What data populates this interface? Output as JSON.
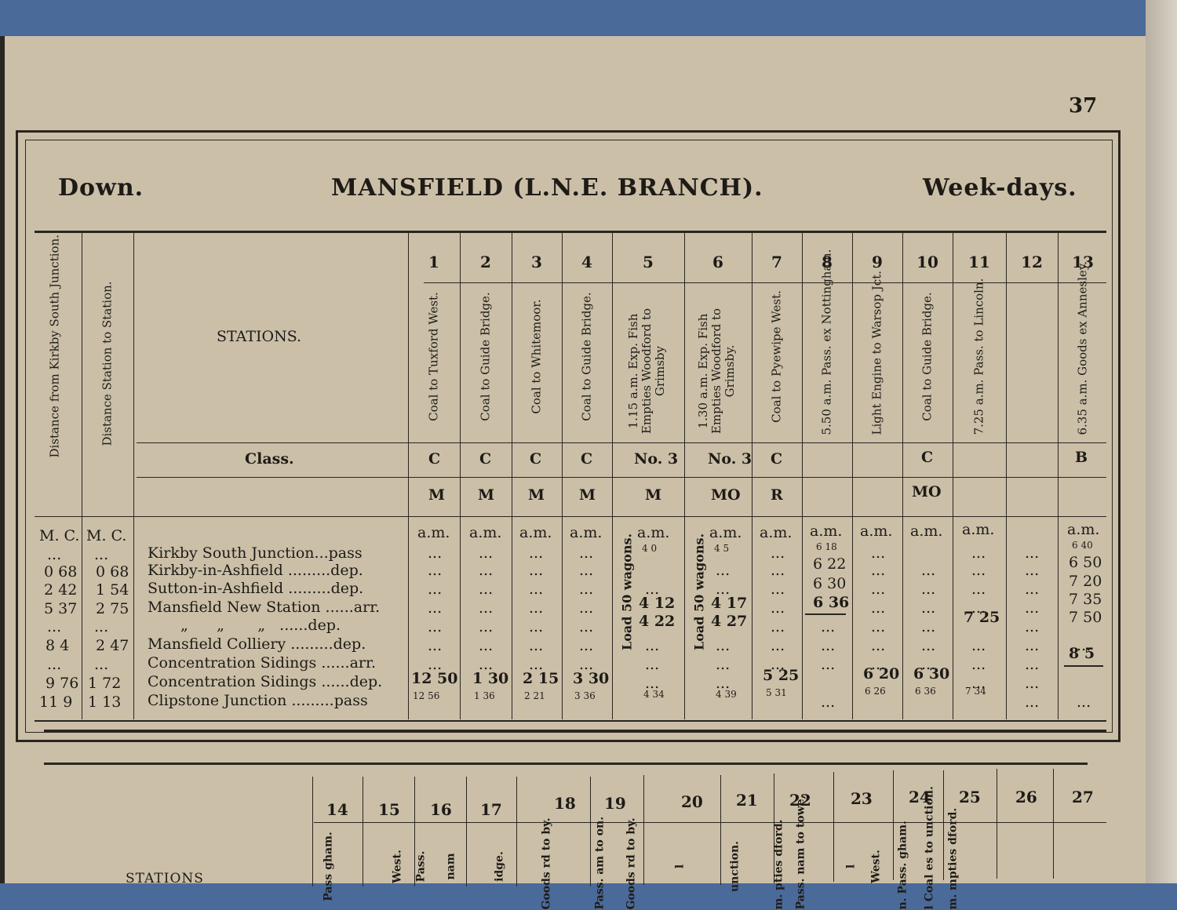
{
  "page_number": "37",
  "header": {
    "left": "Down.",
    "title": "MANSFIELD (L.N.E. BRANCH).",
    "right": "Week-days."
  },
  "side_headers": {
    "dist_junction": "Distance from Kirkby South Junction.",
    "dist_station": "Distance Station to Station.",
    "stations": "STATIONS.",
    "class": "Class."
  },
  "columns": [
    {
      "num": "1",
      "desc": "Coal to Tuxford West.",
      "class": "C",
      "code": "M"
    },
    {
      "num": "2",
      "desc": "Coal to Guide Bridge.",
      "class": "C",
      "code": "M"
    },
    {
      "num": "3",
      "desc": "Coal to Whitemoor.",
      "class": "C",
      "code": "M"
    },
    {
      "num": "4",
      "desc": "Coal to Guide Bridge.",
      "class": "C",
      "code": "M"
    },
    {
      "num": "5",
      "desc": "1.15 a.m. Exp. Fish Empties Woodford to Grimsby",
      "class": "No. 3",
      "code": "M"
    },
    {
      "num": "6",
      "desc": "1.30 a.m. Exp. Fish Empties Woodford to Grimsby.",
      "class": "No. 3",
      "code": "MO"
    },
    {
      "num": "7",
      "desc": "Coal to Pyewipe West.",
      "class": "C",
      "code": "R"
    },
    {
      "num": "8",
      "desc": "5.50 a.m. Pass. ex Nottingham.",
      "class": "",
      "code": ""
    },
    {
      "num": "9",
      "desc": "Light Engine to Warsop Jct.",
      "class": "",
      "code": ""
    },
    {
      "num": "10",
      "desc": "Coal to Guide Bridge.",
      "class": "C",
      "code": "MO"
    },
    {
      "num": "11",
      "desc": "7.25 a.m. Pass. to Lincoln.",
      "class": "",
      "code": ""
    },
    {
      "num": "12",
      "desc": "",
      "class": "",
      "code": ""
    },
    {
      "num": "13",
      "desc": "6.35 a.m. Goods ex Annesley.",
      "class": "B",
      "code": ""
    }
  ],
  "mc_headers": {
    "d1": "M. C.",
    "d2": "M. C."
  },
  "am": "a.m.",
  "ellipsis": "...",
  "load_label": "Load 50 wagons.",
  "stations": [
    {
      "d1": "...",
      "d2": "...",
      "name": "Kirkby South Junction...pass"
    },
    {
      "d1": "0 68",
      "d2": "0 68",
      "name": "Kirkby-in-Ashfield .........dep."
    },
    {
      "d1": "2 42",
      "d2": "1 54",
      "name": "Sutton-in-Ashfield .........dep."
    },
    {
      "d1": "5 37",
      "d2": "2 75",
      "name": "Mansfield New Station ......arr."
    },
    {
      "d1": "...",
      "d2": "...",
      "name": "„      „       „   ......dep."
    },
    {
      "d1": "8  4",
      "d2": "2 47",
      "name": "Mansfield Colliery .........dep."
    },
    {
      "d1": "...",
      "d2": "...",
      "name": "Concentration Sidings ......arr."
    },
    {
      "d1": "9 76",
      "d2": "1  72",
      "name": "Concentration Sidings ......dep."
    },
    {
      "d1": "11  9",
      "d2": "1  13",
      "name": "Clipstone Junction .........pass"
    }
  ],
  "times": {
    "c5": {
      "r0": "4  0",
      "r3": "4 12",
      "r4": "4 22",
      "r8": "4 34"
    },
    "c6": {
      "r0": "4  5",
      "r3": "4 17",
      "r4": "4 27",
      "r8": "4 39"
    },
    "c1": {
      "r7": "12 50",
      "r8": "12 56"
    },
    "c2": {
      "r7": "1 30",
      "r8": "1 36"
    },
    "c3": {
      "r7": "2 15",
      "r8": "2 21"
    },
    "c4": {
      "r7": "3 30",
      "r8": "3 36"
    },
    "c7": {
      "r7": "5 25",
      "r8": "5 31"
    },
    "c8": {
      "r0": "6 18",
      "r1": "6 22",
      "r2": "6 30",
      "r3": "6 36"
    },
    "c9": {
      "r7": "6 20",
      "r8": "6 26"
    },
    "c10": {
      "r7": "6 30",
      "r8": "6 36"
    },
    "c11": {
      "r4": "7 25",
      "r8": "7 34"
    },
    "c13": {
      "r0": "6 40",
      "r1": "6 50",
      "r2": "7 20",
      "r3": "7 35",
      "r4": "7 50",
      "r6": "8  5"
    }
  },
  "bottom": {
    "columns": [
      "14",
      "15",
      "16",
      "17",
      "18",
      "19",
      "20",
      "21",
      "22",
      "23",
      "24",
      "25",
      "26",
      "27"
    ],
    "stations_label": "STATIONS",
    "desc_fragments": [
      "Pass gham.",
      "West.",
      "Pass.",
      "nam",
      "idge.",
      "Goods rd to by.",
      "Pass. am to on.",
      "Goods rd to by.",
      "l",
      "unction.",
      "m. pties dford.",
      "Pass. nam to towe,",
      "l",
      "West.",
      "n. Pass. gham.",
      "l Coal es to unction.",
      "m. mpties dford."
    ]
  }
}
